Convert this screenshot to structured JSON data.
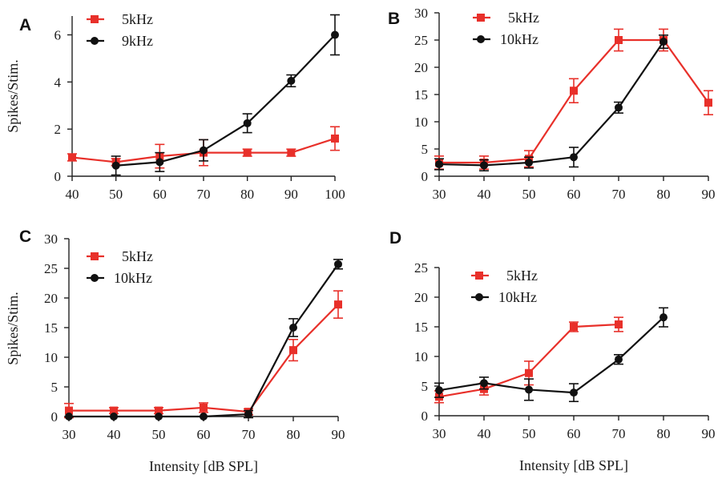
{
  "colors": {
    "red": "#e8302a",
    "black": "#111111",
    "axis": "#222222"
  },
  "chart_data": [
    {
      "panel": "A",
      "type": "line",
      "ylabel": "Spikes/Stim.",
      "xlabel": "",
      "xlim": [
        40,
        100
      ],
      "ylim": [
        0,
        6.8
      ],
      "xticks": [
        40,
        50,
        60,
        70,
        80,
        90,
        100
      ],
      "yticks": [
        0,
        2,
        4,
        6
      ],
      "series": [
        {
          "name": "5kHz",
          "color": "red",
          "marker": "square",
          "x": [
            40,
            50,
            60,
            70,
            80,
            90,
            100
          ],
          "y": [
            0.8,
            0.6,
            0.85,
            1.0,
            1.0,
            1.0,
            1.6
          ],
          "err": [
            0.15,
            0.15,
            0.5,
            0.55,
            0.15,
            0.15,
            0.5
          ]
        },
        {
          "name": "9kHz",
          "color": "black",
          "marker": "circle",
          "x": [
            50,
            60,
            70,
            80,
            90,
            100
          ],
          "y": [
            0.45,
            0.6,
            1.1,
            2.25,
            4.05,
            6.0
          ],
          "err": [
            0.4,
            0.4,
            0.45,
            0.4,
            0.25,
            0.85
          ]
        }
      ]
    },
    {
      "panel": "B",
      "type": "line",
      "ylabel": "",
      "xlabel": "",
      "xlim": [
        30,
        90
      ],
      "ylim": [
        0,
        30
      ],
      "xticks": [
        30,
        40,
        50,
        60,
        70,
        80,
        90
      ],
      "yticks": [
        0,
        5,
        10,
        15,
        20,
        25,
        30
      ],
      "series": [
        {
          "name": "5kHz",
          "color": "red",
          "marker": "square",
          "x": [
            30,
            40,
            50,
            60,
            70,
            80,
            90
          ],
          "y": [
            2.5,
            2.5,
            3.2,
            15.7,
            25.0,
            25.0,
            13.5
          ],
          "err": [
            1.2,
            1.2,
            1.5,
            2.2,
            2.0,
            2.0,
            2.2
          ]
        },
        {
          "name": "10kHz",
          "color": "black",
          "marker": "circle",
          "x": [
            30,
            40,
            50,
            60,
            70,
            80
          ],
          "y": [
            2.2,
            2.0,
            2.5,
            3.5,
            12.6,
            24.7
          ],
          "err": [
            1.0,
            1.0,
            1.0,
            1.8,
            1.0,
            1.2
          ]
        }
      ]
    },
    {
      "panel": "C",
      "type": "line",
      "ylabel": "Spikes/Stim.",
      "xlabel": "Intensity [dB SPL]",
      "xlim": [
        30,
        90
      ],
      "ylim": [
        0,
        30
      ],
      "xticks": [
        30,
        40,
        50,
        60,
        70,
        80,
        90
      ],
      "yticks": [
        0,
        5,
        10,
        15,
        20,
        25,
        30
      ],
      "series": [
        {
          "name": "5kHz",
          "color": "red",
          "marker": "square",
          "x": [
            30,
            40,
            50,
            60,
            70,
            80,
            90
          ],
          "y": [
            1.0,
            1.0,
            1.0,
            1.5,
            0.8,
            11.2,
            18.9
          ],
          "err": [
            1.2,
            0.5,
            0.5,
            0.8,
            0.5,
            1.8,
            2.3
          ]
        },
        {
          "name": "10kHz",
          "color": "black",
          "marker": "circle",
          "x": [
            30,
            40,
            50,
            60,
            70,
            80,
            90
          ],
          "y": [
            0,
            0,
            0,
            0,
            0.4,
            15.0,
            25.7
          ],
          "err": [
            0,
            0,
            0,
            0,
            0.6,
            1.5,
            0.8
          ]
        }
      ]
    },
    {
      "panel": "D",
      "type": "line",
      "ylabel": "",
      "xlabel": "Intensity [dB SPL]",
      "xlim": [
        30,
        90
      ],
      "ylim": [
        0,
        25
      ],
      "xticks": [
        30,
        40,
        50,
        60,
        70,
        80,
        90
      ],
      "yticks": [
        0,
        5,
        10,
        15,
        20,
        25
      ],
      "series": [
        {
          "name": "5kHz",
          "color": "red",
          "marker": "square",
          "x": [
            30,
            40,
            50,
            60,
            70
          ],
          "y": [
            3.2,
            4.5,
            7.2,
            15.0,
            15.4
          ],
          "err": [
            1.0,
            1.0,
            2.0,
            0.8,
            1.2
          ]
        },
        {
          "name": "10kHz",
          "color": "black",
          "marker": "circle",
          "x": [
            30,
            40,
            50,
            60,
            70,
            80
          ],
          "y": [
            4.3,
            5.5,
            4.4,
            3.9,
            9.5,
            16.6
          ],
          "err": [
            1.2,
            1.0,
            1.8,
            1.5,
            0.8,
            1.6
          ]
        }
      ]
    }
  ]
}
